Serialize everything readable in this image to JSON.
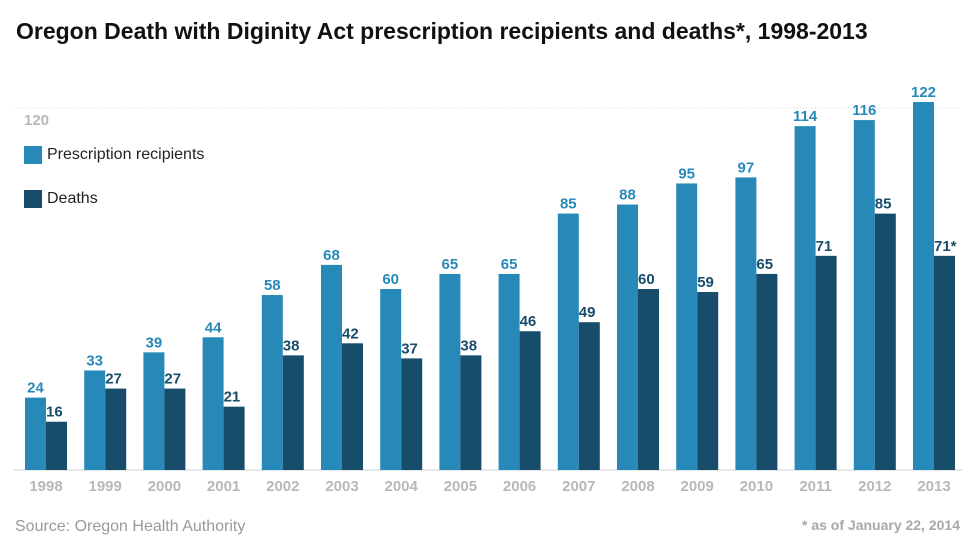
{
  "title": "Oregon Death with Diginity Act prescription recipients and deaths*, 1998-2013",
  "source": "Source: Oregon Health Authority",
  "footnote": "* as of January 22, 2014",
  "colors": {
    "recipients": "#2789b8",
    "deaths": "#174d6b",
    "grid": "#d8d8d8",
    "tick": "#b8b8b8"
  },
  "legend": [
    {
      "label": "Prescription recipients",
      "color": "#2789b8"
    },
    {
      "label": "Deaths",
      "color": "#174d6b"
    }
  ],
  "chart_data": {
    "type": "bar",
    "title": "Oregon Death with Diginity Act prescription recipients and deaths*, 1998-2013",
    "categories": [
      "1998",
      "1999",
      "2000",
      "2001",
      "2002",
      "2003",
      "2004",
      "2005",
      "2006",
      "2007",
      "2008",
      "2009",
      "2010",
      "2011",
      "2012",
      "2013"
    ],
    "series": [
      {
        "name": "Prescription recipients",
        "values": [
          24,
          33,
          39,
          44,
          58,
          68,
          60,
          65,
          65,
          85,
          88,
          95,
          97,
          114,
          116,
          122
        ],
        "labels": [
          "24",
          "33",
          "39",
          "44",
          "58",
          "68",
          "60",
          "65",
          "65",
          "85",
          "88",
          "95",
          "97",
          "114",
          "116",
          "122"
        ]
      },
      {
        "name": "Deaths",
        "values": [
          16,
          27,
          27,
          21,
          38,
          42,
          37,
          38,
          46,
          49,
          60,
          59,
          65,
          71,
          85,
          71
        ],
        "labels": [
          "16",
          "27",
          "27",
          "21",
          "38",
          "42",
          "37",
          "38",
          "46",
          "49",
          "60",
          "59",
          "65",
          "71",
          "85",
          "71*"
        ]
      }
    ],
    "ylim": [
      0,
      122
    ],
    "yticks": [
      120
    ],
    "grid": true,
    "legend_position": "top-left"
  }
}
